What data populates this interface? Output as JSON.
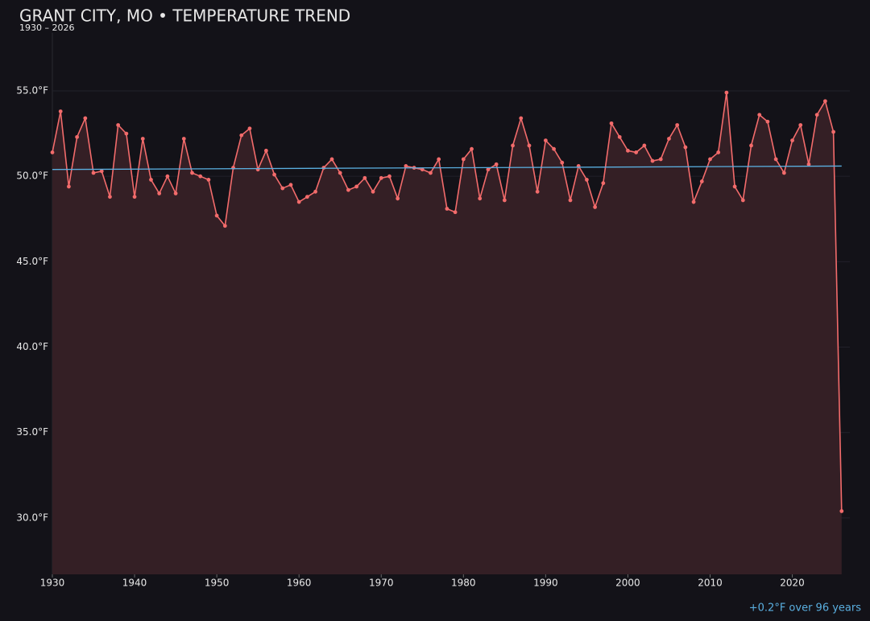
{
  "chart_data": {
    "type": "line",
    "title": "GRANT CITY, MO • TEMPERATURE TREND",
    "subtitle": "1930 – 2026",
    "annotation": "+0.2°F over 96 years",
    "x": [
      1930,
      1931,
      1932,
      1933,
      1934,
      1935,
      1936,
      1937,
      1938,
      1939,
      1940,
      1941,
      1942,
      1943,
      1944,
      1945,
      1946,
      1947,
      1948,
      1949,
      1950,
      1951,
      1952,
      1953,
      1954,
      1955,
      1956,
      1957,
      1958,
      1959,
      1960,
      1961,
      1962,
      1963,
      1964,
      1965,
      1966,
      1967,
      1968,
      1969,
      1970,
      1971,
      1972,
      1973,
      1974,
      1975,
      1976,
      1977,
      1978,
      1979,
      1980,
      1981,
      1982,
      1983,
      1984,
      1985,
      1986,
      1987,
      1988,
      1989,
      1990,
      1991,
      1992,
      1993,
      1994,
      1995,
      1996,
      1997,
      1998,
      1999,
      2000,
      2001,
      2002,
      2003,
      2004,
      2005,
      2006,
      2007,
      2008,
      2009,
      2010,
      2011,
      2012,
      2013,
      2014,
      2015,
      2016,
      2017,
      2018,
      2019,
      2020,
      2021,
      2022,
      2023,
      2024,
      2025,
      2026
    ],
    "series": [
      {
        "color": "#f26b6b",
        "fill": "#341f25",
        "values": [
          51.4,
          53.8,
          49.4,
          52.3,
          53.4,
          50.2,
          50.3,
          48.8,
          53.0,
          52.5,
          48.8,
          52.2,
          49.8,
          49.0,
          50.0,
          49.0,
          52.2,
          50.2,
          50.0,
          49.8,
          47.7,
          47.1,
          50.5,
          52.4,
          52.8,
          50.4,
          51.5,
          50.1,
          49.3,
          49.5,
          48.5,
          48.8,
          49.1,
          50.5,
          51.0,
          50.2,
          49.2,
          49.4,
          49.9,
          49.1,
          49.9,
          50.0,
          48.7,
          50.6,
          50.5,
          50.4,
          50.2,
          51.0,
          48.1,
          47.9,
          51.0,
          51.6,
          48.7,
          50.4,
          50.7,
          48.6,
          51.8,
          53.4,
          51.8,
          49.1,
          52.1,
          51.6,
          50.8,
          48.6,
          50.6,
          49.8,
          48.2,
          49.6,
          53.1,
          52.3,
          51.5,
          51.4,
          51.8,
          50.9,
          51.0,
          52.2,
          53.0,
          51.7,
          48.5,
          49.7,
          51.0,
          51.4,
          54.9,
          49.4,
          48.6,
          51.8,
          53.6,
          53.2,
          51.0,
          50.2,
          52.1,
          53.0,
          50.7,
          53.6,
          54.4,
          52.6,
          30.4
        ]
      }
    ],
    "trend": {
      "color": "#5aafe0",
      "x": [
        1930,
        2026
      ],
      "values": [
        50.4,
        50.6
      ]
    },
    "xlim": [
      1930,
      2027
    ],
    "xticks": [
      1930,
      1940,
      1950,
      1960,
      1970,
      1980,
      1990,
      2000,
      2010,
      2020
    ],
    "ylim": [
      26.7,
      58.4
    ],
    "yticks": [
      {
        "value": 30,
        "label": "30.0°F"
      },
      {
        "value": 35,
        "label": "35.0°F"
      },
      {
        "value": 40,
        "label": "40.0°F"
      },
      {
        "value": 45,
        "label": "45.0°F"
      },
      {
        "value": 50,
        "label": "50.0°F"
      },
      {
        "value": 55,
        "label": "55.0°F"
      }
    ],
    "grid": true
  }
}
